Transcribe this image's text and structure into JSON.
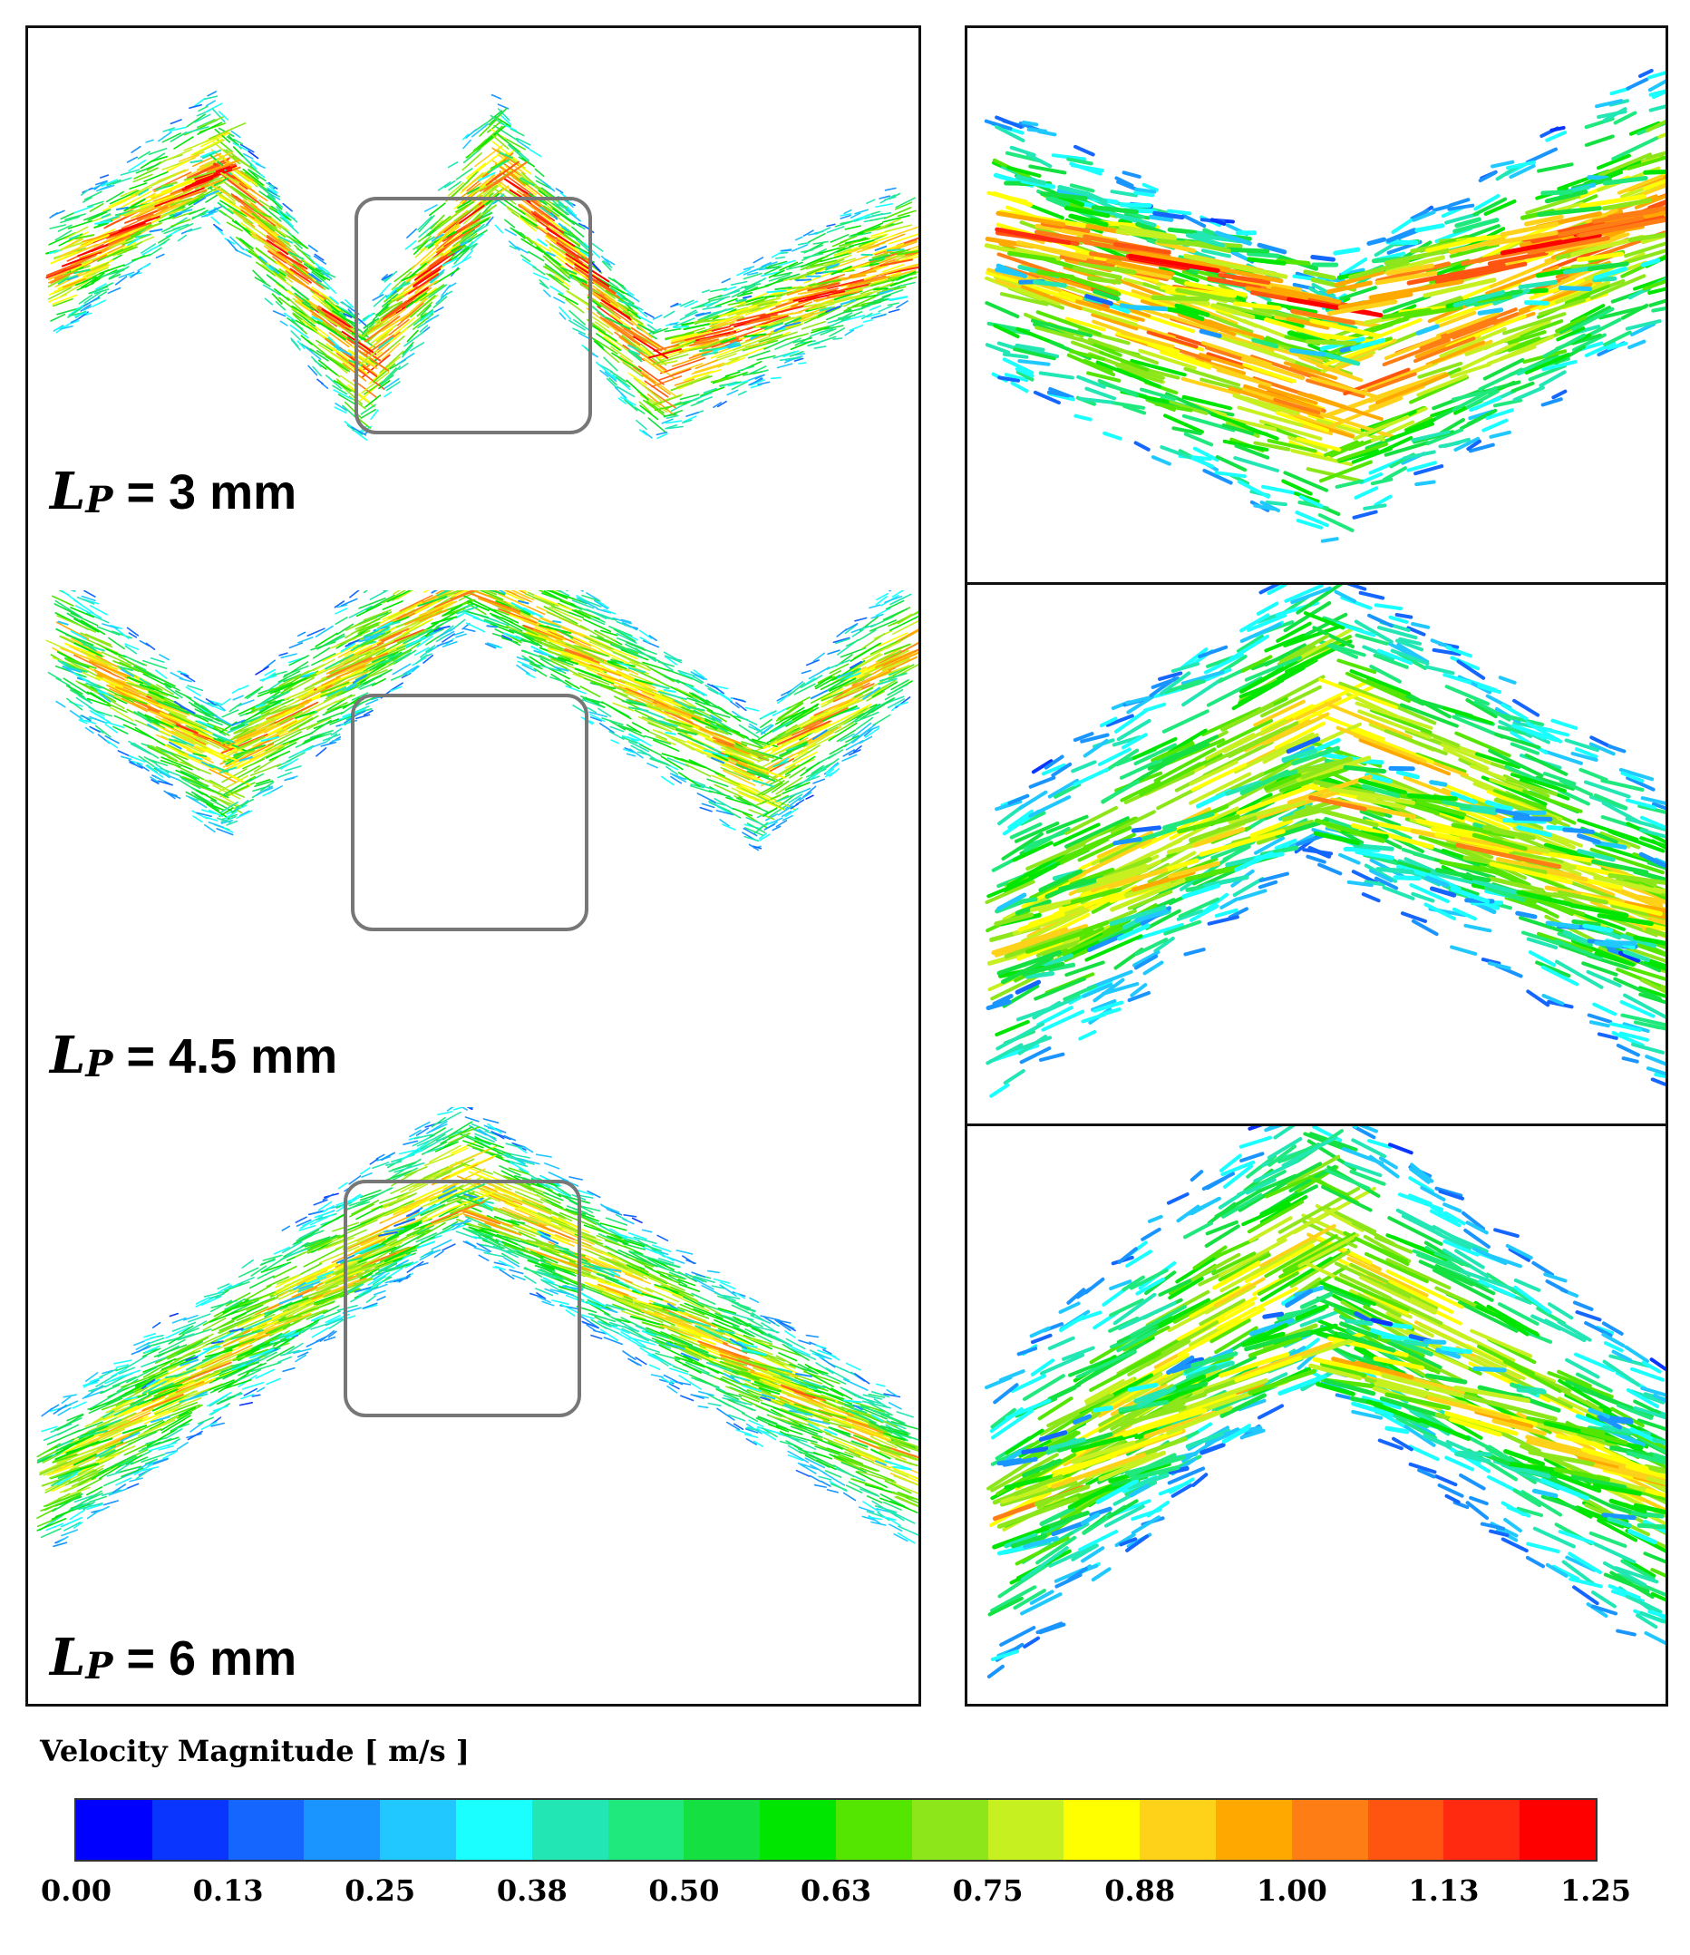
{
  "cases": [
    {
      "symbol": "L",
      "subscript": "P",
      "equals": "=",
      "value": "3 mm"
    },
    {
      "symbol": "L",
      "subscript": "P",
      "equals": "=",
      "value": "4.5 mm"
    },
    {
      "symbol": "L",
      "subscript": "P",
      "equals": "=",
      "value": "6 mm"
    }
  ],
  "legend": {
    "title": "Velocity Magnitude [ m/s ]",
    "ticks": [
      "0.00",
      "0.13",
      "0.25",
      "0.38",
      "0.50",
      "0.63",
      "0.75",
      "0.88",
      "1.00",
      "1.13",
      "1.25"
    ],
    "colors": [
      "#0000ff",
      "#0a35ff",
      "#1565ff",
      "#1a94ff",
      "#20c8ff",
      "#1affff",
      "#22e6b4",
      "#1fe87c",
      "#15e041",
      "#00e600",
      "#54e600",
      "#8ce61a",
      "#c6f020",
      "#ffff00",
      "#ffd21a",
      "#ffa800",
      "#ff7d15",
      "#ff5510",
      "#ff2a10",
      "#ff0000"
    ]
  }
}
